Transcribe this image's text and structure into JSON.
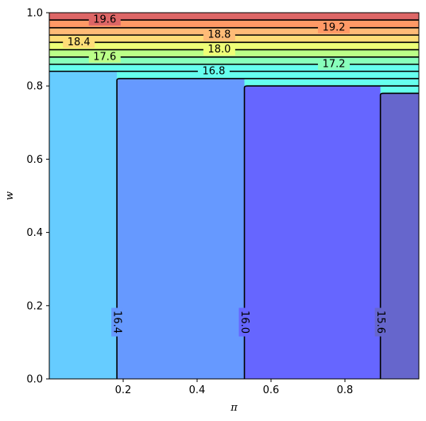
{
  "chart_data": {
    "type": "contour",
    "xlabel": "π",
    "ylabel": "w",
    "xlim": [
      0.0,
      1.0
    ],
    "ylim": [
      0.0,
      1.0
    ],
    "x_ticks": [
      "0.2",
      "0.4",
      "0.6",
      "0.8"
    ],
    "x_tick_values": [
      0.2,
      0.4,
      0.6,
      0.8
    ],
    "y_ticks": [
      "0.0",
      "0.2",
      "0.4",
      "0.6",
      "0.8",
      "1.0"
    ],
    "y_tick_values": [
      0.0,
      0.2,
      0.4,
      0.6,
      0.8,
      1.0
    ],
    "grid": false,
    "vertical_regions": [
      {
        "x0": 0.0,
        "x1": 0.183,
        "color": "#66ccff"
      },
      {
        "x0": 0.183,
        "x1": 0.528,
        "color": "#6699ff"
      },
      {
        "x0": 0.528,
        "x1": 0.896,
        "color": "#6666ff"
      },
      {
        "x0": 0.896,
        "x1": 1.0,
        "color": "#6666cc"
      }
    ],
    "vertical_tops": [
      0.84,
      0.82,
      0.8,
      0.78
    ],
    "vertical_contours": [
      {
        "level": "16.4",
        "x": 0.183,
        "top": 0.82,
        "label_y": 0.155
      },
      {
        "level": "16.0",
        "x": 0.528,
        "top": 0.8,
        "label_y": 0.155
      },
      {
        "level": "15.6",
        "x": 0.896,
        "top": 0.78,
        "label_y": 0.155
      }
    ],
    "horizontal_bands": [
      {
        "y0": 0.84,
        "y1": 0.859,
        "color": "#66ffee"
      },
      {
        "y0": 0.859,
        "y1": 0.879,
        "color": "#88ffbb"
      },
      {
        "y0": 0.879,
        "y1": 0.899,
        "color": "#bbff88"
      },
      {
        "y0": 0.899,
        "y1": 0.919,
        "color": "#eeff77"
      },
      {
        "y0": 0.919,
        "y1": 0.939,
        "color": "#ffdd77"
      },
      {
        "y0": 0.939,
        "y1": 0.959,
        "color": "#ffbb77"
      },
      {
        "y0": 0.959,
        "y1": 0.98,
        "color": "#ff9966"
      },
      {
        "y0": 0.98,
        "y1": 1.0,
        "color": "#dd6666"
      }
    ],
    "horizontal_contours": [
      {
        "level": "16.8",
        "y": 0.84,
        "label_x": 0.445
      },
      {
        "level": "17.2",
        "y": 0.859,
        "label_x": 0.77
      },
      {
        "level": "17.6",
        "y": 0.879,
        "label_x": 0.15
      },
      {
        "level": "18.0",
        "y": 0.899,
        "label_x": 0.46
      },
      {
        "level": "18.4",
        "y": 0.919,
        "label_x": 0.08
      },
      {
        "level": "18.8",
        "y": 0.939,
        "label_x": 0.46
      },
      {
        "level": "19.2",
        "y": 0.959,
        "label_x": 0.77
      },
      {
        "level": "19.6",
        "y": 0.98,
        "label_x": 0.15
      }
    ]
  }
}
